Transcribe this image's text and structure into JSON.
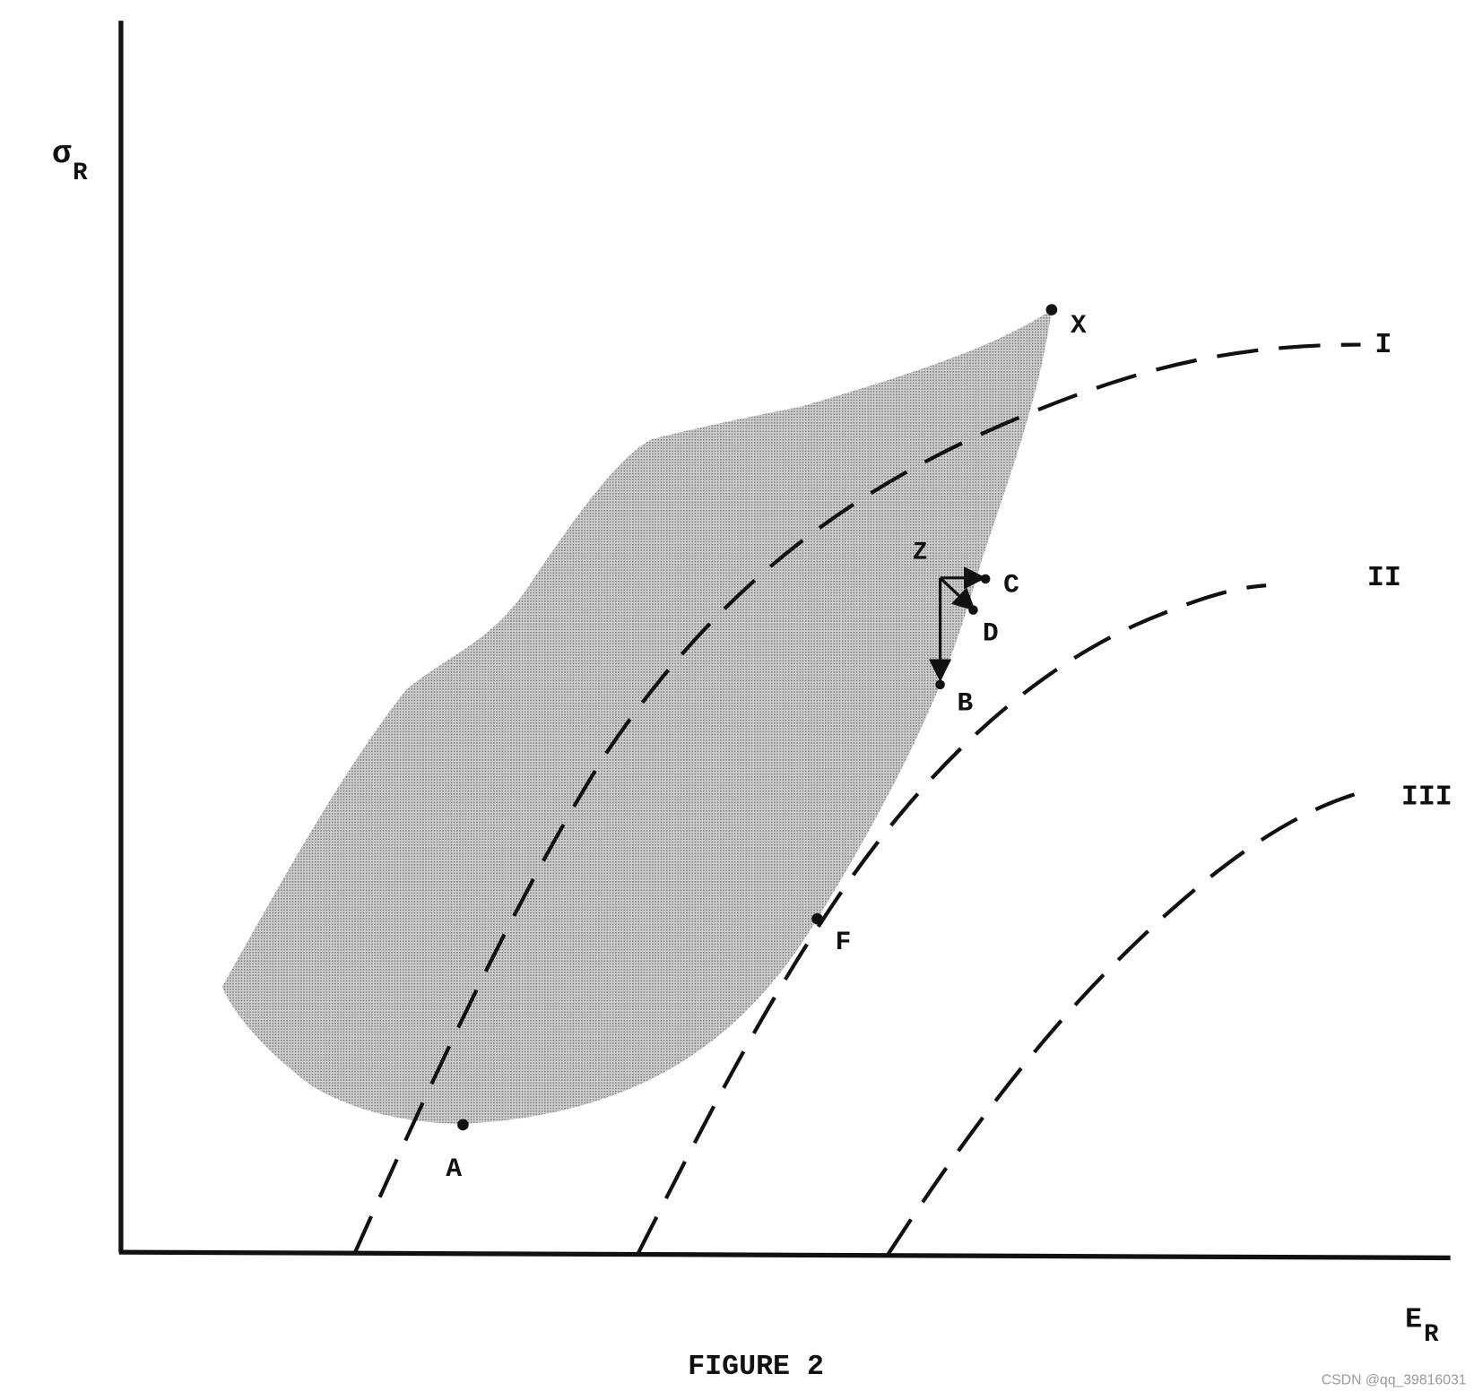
{
  "axes": {
    "y_label": {
      "symbol": "σ",
      "subscript": "R"
    },
    "x_label": {
      "symbol": "E",
      "subscript": "R"
    }
  },
  "points": {
    "x": "X",
    "z": "Z",
    "c": "C",
    "d": "D",
    "b": "B",
    "a": "A",
    "f": "F"
  },
  "curves": [
    "I",
    "II",
    "III"
  ],
  "caption": "FIGURE 2",
  "watermark": "CSDN @qq_39816031"
}
